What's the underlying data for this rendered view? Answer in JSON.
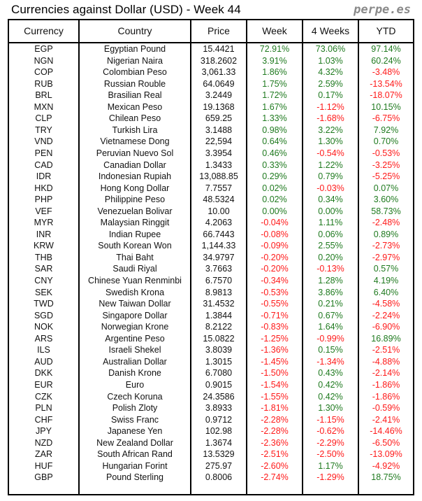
{
  "title": "Currencies against Dollar (USD) - Week 44",
  "brand": "perpe.es",
  "colors": {
    "positive": "#1f7a1f",
    "negative": "#ff1a1a"
  },
  "columns": [
    "Currency",
    "Country",
    "Price",
    "Week",
    "4 Weeks",
    "YTD"
  ],
  "rows": [
    [
      "EGP",
      "Egyptian Pound",
      "15.4421",
      "72.91%",
      "73.06%",
      "97.14%"
    ],
    [
      "NGN",
      "Nigerian Naira",
      "318.2602",
      "3.91%",
      "1.03%",
      "60.24%"
    ],
    [
      "COP",
      "Colombian Peso",
      "3,061.33",
      "1.86%",
      "4.32%",
      "-3.48%"
    ],
    [
      "RUB",
      "Russian Rouble",
      "64.0649",
      "1.75%",
      "2.59%",
      "-13.54%"
    ],
    [
      "BRL",
      "Brasilian Real",
      "3.2449",
      "1.72%",
      "0.17%",
      "-18.07%"
    ],
    [
      "MXN",
      "Mexican Peso",
      "19.1368",
      "1.67%",
      "-1.12%",
      "10.15%"
    ],
    [
      "CLP",
      "Chilean Peso",
      "659.25",
      "1.33%",
      "-1.68%",
      "-6.75%"
    ],
    [
      "TRY",
      "Turkish Lira",
      "3.1488",
      "0.98%",
      "3.22%",
      "7.92%"
    ],
    [
      "VND",
      "Vietnamese Dong",
      "22,594",
      "0.64%",
      "1.30%",
      "0.70%"
    ],
    [
      "PEN",
      "Peruvian Nuevo Sol",
      "3.3954",
      "0.46%",
      "-0.54%",
      "-0.53%"
    ],
    [
      "CAD",
      "Canadian Dollar",
      "1.3433",
      "0.33%",
      "1.22%",
      "-3.25%"
    ],
    [
      "IDR",
      "Indonesian Rupiah",
      "13,088.85",
      "0.29%",
      "0.79%",
      "-5.25%"
    ],
    [
      "HKD",
      "Hong Kong Dollar",
      "7.7557",
      "0.02%",
      "-0.03%",
      "0.07%"
    ],
    [
      "PHP",
      "Philippine Peso",
      "48.5324",
      "0.02%",
      "0.34%",
      "3.60%"
    ],
    [
      "VEF",
      "Venezuelan Bolivar",
      "10.00",
      "0.00%",
      "0.00%",
      "58.73%"
    ],
    [
      "MYR",
      "Malaysian Ringgit",
      "4.2063",
      "-0.04%",
      "1.11%",
      "-2.48%"
    ],
    [
      "INR",
      "Indian Rupee",
      "66.7443",
      "-0.08%",
      "0.06%",
      "0.89%"
    ],
    [
      "KRW",
      "South Korean Won",
      "1,144.33",
      "-0.09%",
      "2.55%",
      "-2.73%"
    ],
    [
      "THB",
      "Thai Baht",
      "34.9797",
      "-0.20%",
      "0.20%",
      "-2.97%"
    ],
    [
      "SAR",
      "Saudi Riyal",
      "3.7663",
      "-0.20%",
      "-0.13%",
      "0.57%"
    ],
    [
      "CNY",
      "Chinese Yuan Renminbi",
      "6.7570",
      "-0.34%",
      "1.28%",
      "4.19%"
    ],
    [
      "SEK",
      "Swedish Krona",
      "8.9813",
      "-0.53%",
      "3.86%",
      "6.40%"
    ],
    [
      "TWD",
      "New Taiwan Dollar",
      "31.4532",
      "-0.55%",
      "0.21%",
      "-4.58%"
    ],
    [
      "SGD",
      "Singapore Dollar",
      "1.3844",
      "-0.71%",
      "0.67%",
      "-2.24%"
    ],
    [
      "NOK",
      "Norwegian Krone",
      "8.2122",
      "-0.83%",
      "1.64%",
      "-6.90%"
    ],
    [
      "ARS",
      "Argentine Peso",
      "15.0822",
      "-1.25%",
      "-0.99%",
      "16.89%"
    ],
    [
      "ILS",
      "Israeli Shekel",
      "3.8039",
      "-1.36%",
      "0.15%",
      "-2.51%"
    ],
    [
      "AUD",
      "Australian Dollar",
      "1.3015",
      "-1.45%",
      "-1.34%",
      "-4.88%"
    ],
    [
      "DKK",
      "Danish Krone",
      "6.7080",
      "-1.50%",
      "0.43%",
      "-2.14%"
    ],
    [
      "EUR",
      "Euro",
      "0.9015",
      "-1.54%",
      "0.42%",
      "-1.86%"
    ],
    [
      "CZK",
      "Czech Koruna",
      "24.3586",
      "-1.55%",
      "0.42%",
      "-1.86%"
    ],
    [
      "PLN",
      "Polish Zloty",
      "3.8933",
      "-1.81%",
      "1.30%",
      "-0.59%"
    ],
    [
      "CHF",
      "Swiss Franc",
      "0.9712",
      "-2.28%",
      "-1.15%",
      "-2.41%"
    ],
    [
      "JPY",
      "Japanese Yen",
      "102.98",
      "-2.28%",
      "-0.62%",
      "-14.46%"
    ],
    [
      "NZD",
      "New Zealand Dollar",
      "1.3674",
      "-2.36%",
      "-2.29%",
      "-6.50%"
    ],
    [
      "ZAR",
      "South African Rand",
      "13.5329",
      "-2.51%",
      "-2.50%",
      "-13.09%"
    ],
    [
      "HUF",
      "Hungarian Forint",
      "275.97",
      "-2.60%",
      "1.17%",
      "-4.92%"
    ],
    [
      "GBP",
      "Pound Sterling",
      "0.8006",
      "-2.74%",
      "-1.29%",
      "18.75%"
    ]
  ]
}
